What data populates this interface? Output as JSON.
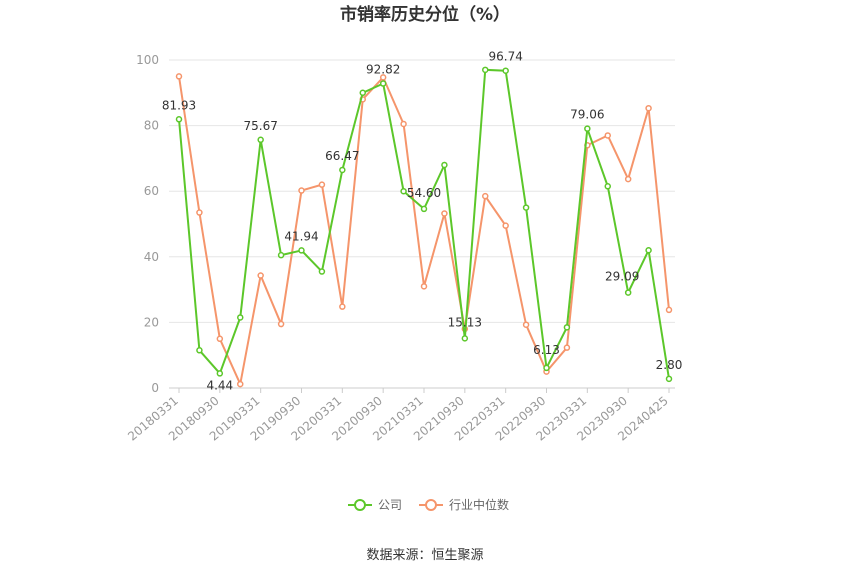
{
  "chart_data": {
    "type": "line",
    "title": "市销率历史分位（%）",
    "xlabel": "",
    "ylabel": "",
    "ylim": [
      0,
      100
    ],
    "yticks": [
      0,
      20,
      40,
      60,
      80,
      100
    ],
    "grid": true,
    "legend_position": "bottom",
    "x": [
      "20180331",
      "20180630",
      "20180930",
      "20181231",
      "20190331",
      "20190630",
      "20190930",
      "20191231",
      "20200331",
      "20200630",
      "20200930",
      "20201231",
      "20210331",
      "20210630",
      "20210930",
      "20211231",
      "20220331",
      "20220630",
      "20220930",
      "20221231",
      "20230331",
      "20230630",
      "20230930",
      "20231231",
      "20240425"
    ],
    "x_tick_labels": [
      "20180331",
      "20180930",
      "20190331",
      "20190930",
      "20200331",
      "20200930",
      "20210331",
      "20210930",
      "20220331",
      "20220930",
      "20230331",
      "20230930",
      "20240425"
    ],
    "x_tick_indices": [
      0,
      2,
      4,
      6,
      8,
      10,
      12,
      14,
      16,
      18,
      20,
      22,
      24
    ],
    "series": [
      {
        "name": "公司",
        "color": "#5cc72a",
        "values": [
          81.93,
          11.5,
          4.44,
          21.5,
          75.67,
          40.5,
          41.94,
          35.5,
          66.47,
          90.0,
          92.82,
          60.0,
          54.6,
          68.0,
          15.13,
          97.0,
          96.74,
          55.0,
          6.13,
          18.5,
          79.06,
          61.5,
          29.09,
          42.0,
          2.8
        ]
      },
      {
        "name": "行业中位数",
        "color": "#f5956b",
        "values": [
          95.0,
          53.5,
          15.0,
          1.2,
          34.3,
          19.5,
          60.2,
          62.0,
          24.8,
          88.0,
          94.7,
          80.5,
          31.0,
          53.2,
          18.0,
          58.5,
          49.5,
          19.3,
          5.0,
          12.3,
          74.0,
          77.0,
          63.7,
          85.3,
          23.8
        ]
      }
    ],
    "data_labels": [
      {
        "series": 0,
        "index": 0,
        "text": "81.93"
      },
      {
        "series": 0,
        "index": 2,
        "text": "4.44"
      },
      {
        "series": 0,
        "index": 4,
        "text": "75.67"
      },
      {
        "series": 0,
        "index": 6,
        "text": "41.94"
      },
      {
        "series": 0,
        "index": 8,
        "text": "66.47"
      },
      {
        "series": 0,
        "index": 10,
        "text": "92.82"
      },
      {
        "series": 0,
        "index": 12,
        "text": "54.60"
      },
      {
        "series": 0,
        "index": 14,
        "text": "15.13"
      },
      {
        "series": 0,
        "index": 16,
        "text": "96.74"
      },
      {
        "series": 0,
        "index": 18,
        "text": "6.13"
      },
      {
        "series": 0,
        "index": 20,
        "text": "79.06"
      },
      {
        "series": 0,
        "index": 22,
        "text": "29.09"
      },
      {
        "series": 0,
        "index": 24,
        "text": "2.80"
      }
    ]
  },
  "source_text": "数据来源：恒生聚源"
}
